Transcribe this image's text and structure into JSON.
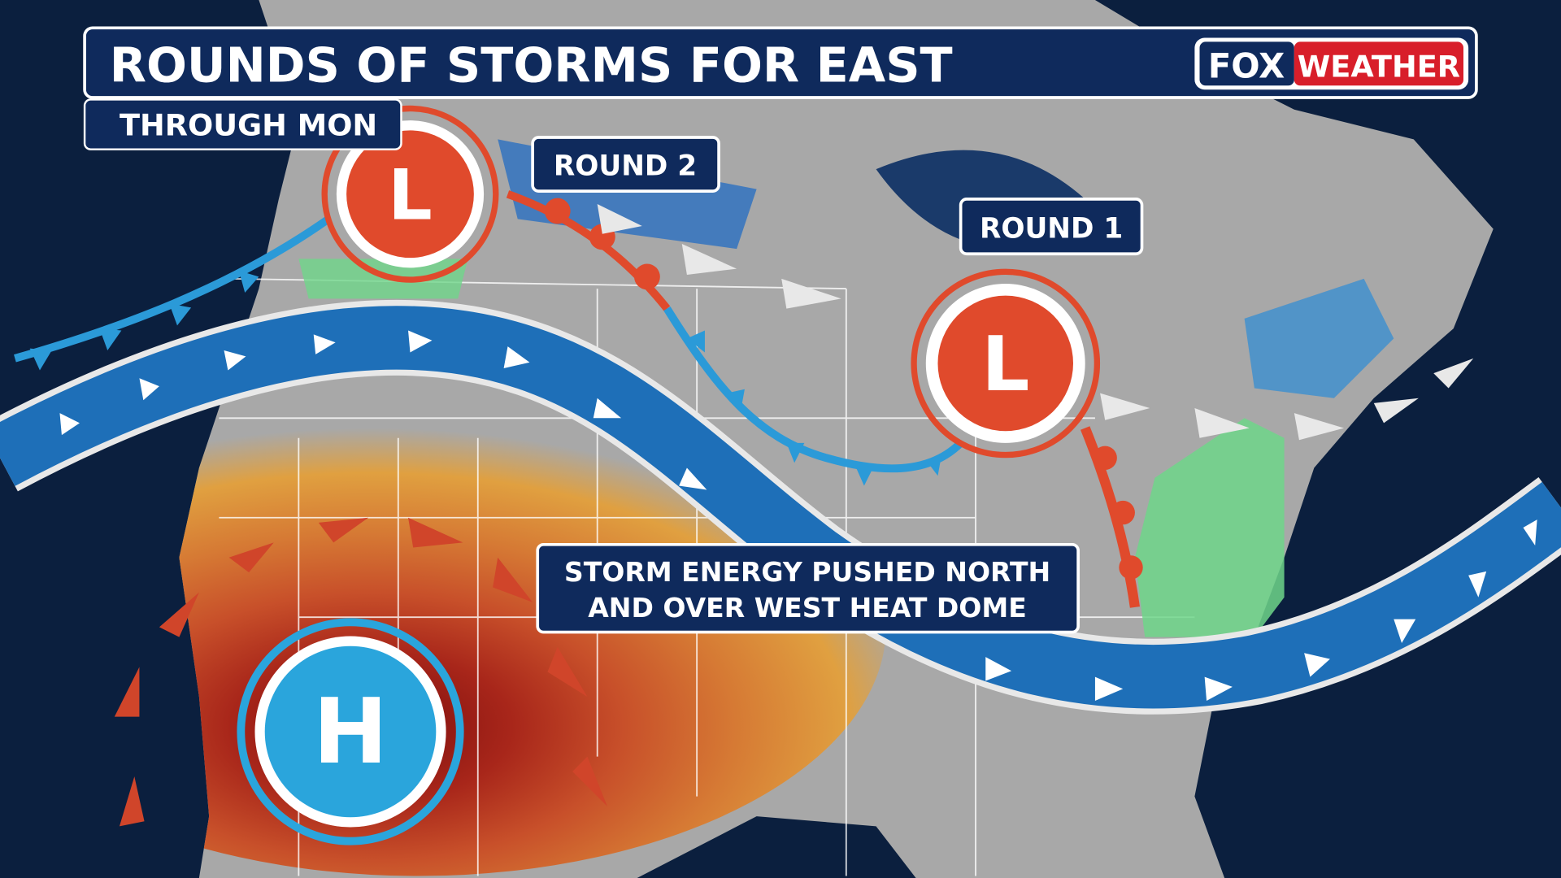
{
  "header": {
    "title": "ROUNDS OF STORMS FOR EAST",
    "subtitle": "THROUGH MON",
    "logo": {
      "part1": "FOX",
      "part2": "WEATHER"
    }
  },
  "labels": {
    "round_2": "ROUND 2",
    "round_1": "ROUND 1",
    "note_line1": "STORM ENERGY PUSHED NORTH",
    "note_line2": "AND OVER WEST HEAT DOME"
  },
  "pressure_systems": [
    {
      "type": "low",
      "letter": "L"
    },
    {
      "type": "low",
      "letter": "L"
    },
    {
      "type": "high",
      "letter": "H"
    }
  ],
  "colors": {
    "ocean": "#0b1f3e",
    "land": "#a8a8a8",
    "title_bar": "#0f2a5c",
    "low": "#e04a2c",
    "high": "#2aa5dc",
    "jet_stream": "#1e6fb8",
    "cold_front": "#2b9ad8",
    "warm_front": "#e04a2c",
    "heat_outer": "#e0a040",
    "heat_inner": "#8a1010",
    "rain": "#6fd68a"
  }
}
